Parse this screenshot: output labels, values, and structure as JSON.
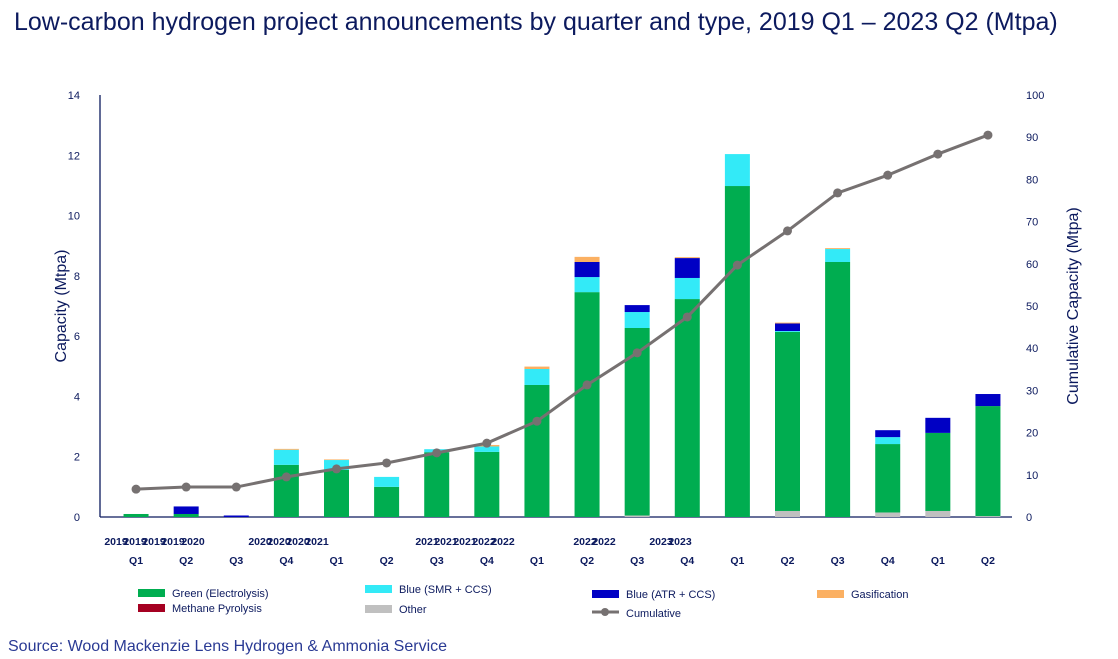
{
  "title": "Low-carbon hydrogen project announcements by quarter and type, 2019 Q1 – 2023 Q2 (Mtpa)",
  "source": "Source: Wood Mackenzie Lens Hydrogen & Ammonia Service",
  "chart_data": {
    "type": "bar",
    "stacked": true,
    "title": "Low-carbon hydrogen project announcements by quarter and type, 2019 Q1 – 2023 Q2 (Mtpa)",
    "ylabel": "Capacity (Mtpa)",
    "y2label": "Cumulative Capacity (Mtpa)",
    "ylim": [
      0,
      14
    ],
    "y2lim": [
      0,
      100
    ],
    "yticks": [
      0,
      2,
      4,
      6,
      8,
      10,
      12,
      14
    ],
    "y2ticks": [
      0,
      10,
      20,
      30,
      40,
      50,
      60,
      70,
      80,
      90,
      100
    ],
    "grid": false,
    "legend_position": "bottom",
    "year_labels": [
      "2019",
      "2019",
      "2019",
      "2019",
      "2020",
      "2020",
      "2020",
      "2020",
      "2021",
      "2021",
      "2021",
      "2021",
      "2022",
      "2022",
      "2022",
      "2022",
      "2023",
      "2023"
    ],
    "quarter_labels": [
      "Q1",
      "Q2",
      "Q3",
      "Q4",
      "Q1",
      "Q2",
      "Q3",
      "Q4",
      "Q1",
      "Q2",
      "Q3",
      "Q4",
      "Q1",
      "Q2",
      "Q3",
      "Q4",
      "Q1",
      "Q2"
    ],
    "series": [
      {
        "name": "Other",
        "color": "#c0c0c0",
        "values": [
          0,
          0,
          0,
          0,
          0,
          0,
          0,
          0,
          0,
          0,
          0.05,
          0,
          0,
          0.2,
          0,
          0.15,
          0.2,
          0.03
        ]
      },
      {
        "name": "Green (Electrolysis)",
        "color": "#00ad50",
        "values": [
          0.1,
          0.1,
          0,
          1.73,
          1.56,
          1.0,
          2.15,
          2.16,
          4.38,
          7.46,
          6.22,
          7.23,
          10.98,
          5.94,
          8.46,
          2.27,
          2.59,
          3.65
        ]
      },
      {
        "name": "Methane Pyrolysis",
        "color": "#a50021",
        "values": [
          0,
          0,
          0,
          0,
          0,
          0,
          0,
          0,
          0,
          0,
          0,
          0,
          0,
          0,
          0,
          0,
          0,
          0
        ]
      },
      {
        "name": "Blue (SMR + CCS)",
        "color": "#33eaf7",
        "values": [
          0,
          0,
          0,
          0.5,
          0.33,
          0.33,
          0.1,
          0.18,
          0.53,
          0.5,
          0.53,
          0.7,
          1.06,
          0.03,
          0.43,
          0.23,
          0,
          0
        ]
      },
      {
        "name": "Blue (ATR + CCS)",
        "color": "#0000c4",
        "values": [
          0,
          0.25,
          0.05,
          0,
          0,
          0,
          0,
          0,
          0,
          0.5,
          0.23,
          0.66,
          0,
          0.25,
          0,
          0.23,
          0.5,
          0.4
        ]
      },
      {
        "name": "Gasification",
        "color": "#fbb062",
        "values": [
          0,
          0,
          0,
          0.03,
          0.02,
          0,
          0,
          0.05,
          0.08,
          0.17,
          0,
          0.03,
          0,
          0.03,
          0.03,
          0,
          0,
          0
        ]
      }
    ],
    "cumulative": {
      "name": "Cumulative",
      "color": "#767171",
      "axis": "right",
      "values": [
        6.6,
        7.1,
        7.1,
        9.5,
        11.4,
        12.8,
        15.2,
        17.5,
        22.7,
        31.3,
        38.9,
        47.4,
        59.7,
        67.8,
        76.8,
        81,
        86,
        90.5
      ]
    }
  },
  "legend_order": [
    "Green (Electrolysis)",
    "Blue (SMR + CCS)",
    "Blue (ATR + CCS)",
    "Gasification",
    "Methane Pyrolysis",
    "Other",
    "Cumulative"
  ]
}
